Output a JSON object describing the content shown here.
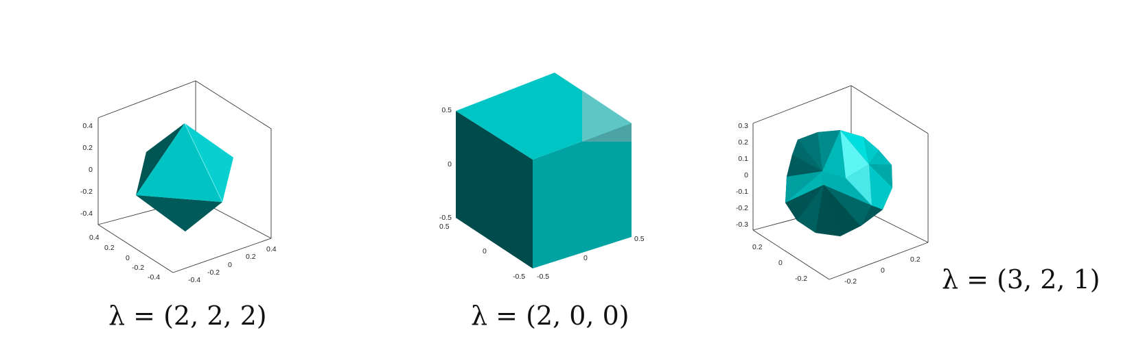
{
  "panels": [
    {
      "caption": "λ = (2, 2, 2)",
      "z_ticks": [
        "0.4",
        "0.2",
        "0",
        "-0.2",
        "-0.4"
      ],
      "x_ticks": [
        "0.4",
        "0.2",
        "0",
        "-0.2",
        "-0.4"
      ],
      "y_ticks": [
        "-0.4",
        "-0.2",
        "0",
        "0.2",
        "0.4"
      ]
    },
    {
      "caption": "λ = (2, 0, 0)",
      "z_ticks": [
        "0.5",
        "0",
        "-0.5"
      ],
      "x_ticks": [
        "0.5",
        "0",
        "-0.5"
      ],
      "y_ticks": [
        "-0.5",
        "0",
        "0.5"
      ]
    },
    {
      "caption": "λ = (3, 2, 1)",
      "z_ticks": [
        "0.3",
        "0.2",
        "0.1",
        "0",
        "-0.1",
        "-0.2",
        "-0.3"
      ],
      "x_ticks": [
        "0.2",
        "0",
        "-0.2"
      ],
      "y_ticks": [
        "-0.2",
        "0",
        "0.2"
      ]
    }
  ],
  "colors": {
    "light": "#00c4c4",
    "mid": "#00a3a3",
    "dark": "#004d4d",
    "highlight": "#5ef5f5"
  }
}
